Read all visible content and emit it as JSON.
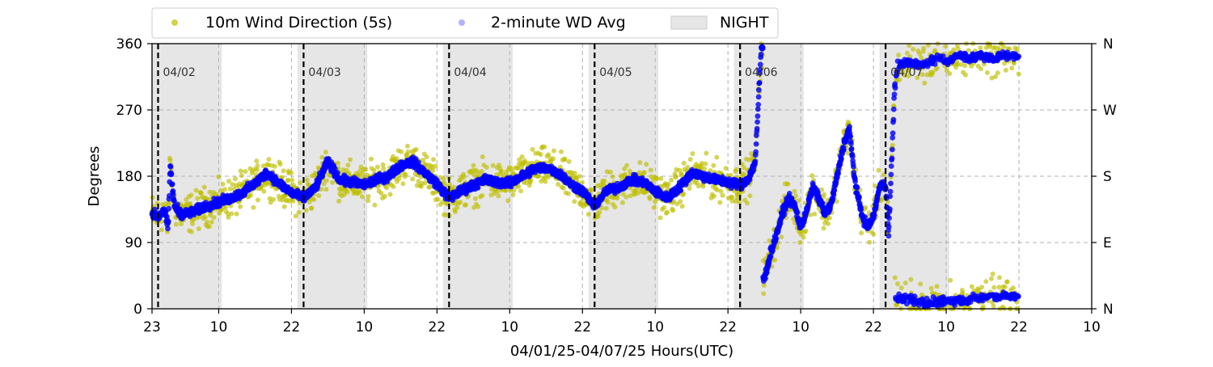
{
  "chart_data": {
    "type": "scatter",
    "xlabel": "04/01/25-04/07/25  Hours(UTC)",
    "ylabel": "Degrees",
    "x_unit": "hours UTC",
    "xlim": [
      "04/01/25 23:00",
      "04/08/25 10:00"
    ],
    "ylim": [
      0,
      360
    ],
    "x_tick_labels": [
      "23",
      "10",
      "22",
      "10",
      "22",
      "10",
      "22",
      "10",
      "22",
      "10",
      "22",
      "10",
      "22",
      "10"
    ],
    "x_tick_times": [
      "04/01 23:00",
      "04/02 10:00",
      "04/02 22:00",
      "04/03 10:00",
      "04/03 22:00",
      "04/04 10:00",
      "04/04 22:00",
      "04/05 10:00",
      "04/05 22:00",
      "04/06 10:00",
      "04/06 22:00",
      "04/07 10:00",
      "04/07 22:00",
      "04/08 10:00"
    ],
    "y_ticks": [
      0,
      90,
      180,
      270,
      360
    ],
    "right_y_tick_labels": [
      "N",
      "E",
      "S",
      "W",
      "N"
    ],
    "grid": true,
    "legend_position": "above plot, left",
    "legend": [
      "10m Wind Direction (5s)",
      "2-minute WD Avg",
      "NIGHT"
    ],
    "colors": {
      "wd_5s": "#bfbf00",
      "wd_avg": "#0000ff",
      "night": "#e6e6e6",
      "midnight_line": "#000000",
      "grid": "#b0b0b0"
    },
    "day_labels": [
      {
        "label": "04/02",
        "at": "04/02 00:00"
      },
      {
        "label": "04/03",
        "at": "04/03 00:00"
      },
      {
        "label": "04/04",
        "at": "04/04 00:00"
      },
      {
        "label": "04/05",
        "at": "04/05 00:00"
      },
      {
        "label": "04/06",
        "at": "04/06 00:00"
      },
      {
        "label": "04/07",
        "at": "04/07 00:00"
      }
    ],
    "midnight_lines": [
      "04/02 00:00",
      "04/03 00:00",
      "04/04 00:00",
      "04/05 00:00",
      "04/06 00:00",
      "04/07 00:00"
    ],
    "night_periods": [
      {
        "start": "04/01 23:00",
        "end": "04/02 10:30"
      },
      {
        "start": "04/02 23:00",
        "end": "04/03 10:30"
      },
      {
        "start": "04/03 23:00",
        "end": "04/04 10:30"
      },
      {
        "start": "04/04 23:00",
        "end": "04/05 10:30"
      },
      {
        "start": "04/05 23:00",
        "end": "04/06 10:30"
      },
      {
        "start": "04/06 23:00",
        "end": "04/07 10:30"
      }
    ],
    "data_end": "04/07 22:00",
    "series": [
      {
        "name": "2-minute WD Avg",
        "points": [
          [
            "04/01 23:00",
            130
          ],
          [
            "04/02 00:00",
            125
          ],
          [
            "04/02 01:00",
            135
          ],
          [
            "04/02 01:40",
            110
          ],
          [
            "04/02 02:00",
            195
          ],
          [
            "04/02 02:40",
            140
          ],
          [
            "04/02 04:00",
            128
          ],
          [
            "04/02 06:00",
            132
          ],
          [
            "04/02 08:00",
            140
          ],
          [
            "04/02 10:00",
            145
          ],
          [
            "04/02 12:00",
            150
          ],
          [
            "04/02 14:00",
            158
          ],
          [
            "04/02 16:00",
            170
          ],
          [
            "04/02 18:00",
            185
          ],
          [
            "04/02 20:00",
            170
          ],
          [
            "04/02 22:00",
            158
          ],
          [
            "04/03 00:00",
            150
          ],
          [
            "04/03 02:00",
            165
          ],
          [
            "04/03 04:00",
            200
          ],
          [
            "04/03 06:00",
            175
          ],
          [
            "04/03 08:00",
            172
          ],
          [
            "04/03 10:00",
            168
          ],
          [
            "04/03 12:00",
            175
          ],
          [
            "04/03 14:00",
            180
          ],
          [
            "04/03 16:00",
            195
          ],
          [
            "04/03 18:00",
            200
          ],
          [
            "04/03 20:00",
            185
          ],
          [
            "04/03 22:00",
            170
          ],
          [
            "04/04 00:00",
            150
          ],
          [
            "04/04 02:00",
            160
          ],
          [
            "04/04 04:00",
            168
          ],
          [
            "04/04 06:00",
            175
          ],
          [
            "04/04 08:00",
            172
          ],
          [
            "04/04 10:00",
            170
          ],
          [
            "04/04 12:00",
            180
          ],
          [
            "04/04 14:00",
            190
          ],
          [
            "04/04 16:00",
            192
          ],
          [
            "04/04 18:00",
            185
          ],
          [
            "04/04 20:00",
            170
          ],
          [
            "04/04 22:00",
            160
          ],
          [
            "04/05 00:00",
            140
          ],
          [
            "04/05 02:00",
            160
          ],
          [
            "04/05 04:00",
            165
          ],
          [
            "04/05 06:00",
            175
          ],
          [
            "04/05 08:00",
            172
          ],
          [
            "04/05 10:00",
            160
          ],
          [
            "04/05 12:00",
            150
          ],
          [
            "04/05 14:00",
            165
          ],
          [
            "04/05 16:00",
            185
          ],
          [
            "04/05 18:00",
            180
          ],
          [
            "04/05 20:00",
            175
          ],
          [
            "04/05 22:00",
            172
          ],
          [
            "04/06 00:00",
            168
          ],
          [
            "04/06 01:30",
            178
          ],
          [
            "04/06 02:30",
            200
          ],
          [
            "04/06 03:30",
            355
          ],
          [
            "04/06 04:00",
            40
          ],
          [
            "04/06 05:00",
            75
          ],
          [
            "04/06 06:00",
            100
          ],
          [
            "04/06 07:00",
            130
          ],
          [
            "04/06 08:00",
            150
          ],
          [
            "04/06 09:00",
            140
          ],
          [
            "04/06 10:00",
            110
          ],
          [
            "04/06 11:00",
            135
          ],
          [
            "04/06 12:00",
            165
          ],
          [
            "04/06 13:00",
            150
          ],
          [
            "04/06 14:00",
            130
          ],
          [
            "04/06 15:00",
            140
          ],
          [
            "04/06 16:00",
            180
          ],
          [
            "04/06 17:00",
            220
          ],
          [
            "04/06 18:00",
            245
          ],
          [
            "04/06 19:00",
            170
          ],
          [
            "04/06 20:00",
            130
          ],
          [
            "04/06 21:00",
            110
          ],
          [
            "04/06 22:00",
            125
          ],
          [
            "04/06 23:00",
            165
          ],
          [
            "04/07 00:00",
            170
          ],
          [
            "04/07 00:30",
            100
          ],
          [
            "04/07 01:00",
            200
          ],
          [
            "04/07 01:30",
            300
          ],
          [
            "04/07 02:00",
            330
          ],
          [
            "04/07 04:00",
            335
          ],
          [
            "04/07 06:00",
            330
          ],
          [
            "04/07 08:00",
            338
          ],
          [
            "04/07 10:00",
            335
          ],
          [
            "04/07 12:00",
            345
          ],
          [
            "04/07 14:00",
            340
          ],
          [
            "04/07 16:00",
            345
          ],
          [
            "04/07 18:00",
            340
          ],
          [
            "04/07 20:00",
            345
          ],
          [
            "04/07 22:00",
            342
          ]
        ],
        "low_branch": [
          [
            "04/07 01:30",
            15
          ],
          [
            "04/07 04:00",
            12
          ],
          [
            "04/07 07:00",
            8
          ],
          [
            "04/07 10:00",
            10
          ],
          [
            "04/07 13:00",
            12
          ],
          [
            "04/07 16:00",
            15
          ],
          [
            "04/07 19:00",
            18
          ],
          [
            "04/07 22:00",
            15
          ]
        ]
      },
      {
        "name": "10m Wind Direction (5s)",
        "spread_deg": 45,
        "points": "same time course as 2-minute WD Avg with roughly ±45° scatter"
      }
    ]
  }
}
